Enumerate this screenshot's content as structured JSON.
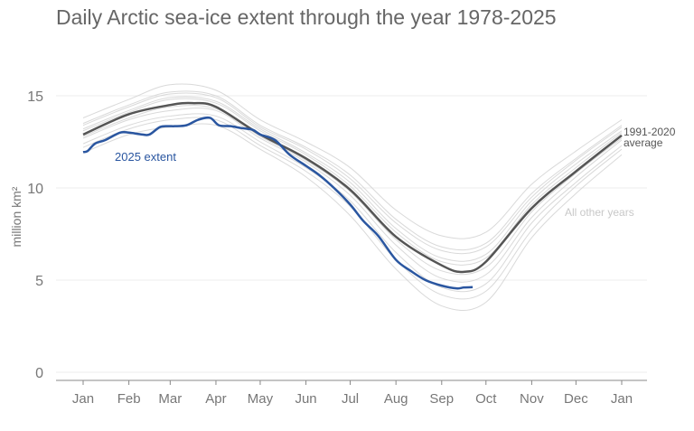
{
  "chart_data": {
    "type": "line",
    "title": "Daily Arctic sea-ice extent through the year 1978-2025",
    "ylabel": "million km²",
    "ylim": [
      0,
      17
    ],
    "yticks": [
      0,
      5,
      10,
      15
    ],
    "xticks": [
      {
        "label": "Jan",
        "day": 0
      },
      {
        "label": "Feb",
        "day": 31
      },
      {
        "label": "Mar",
        "day": 59
      },
      {
        "label": "Apr",
        "day": 90
      },
      {
        "label": "May",
        "day": 120
      },
      {
        "label": "Jun",
        "day": 151
      },
      {
        "label": "Jul",
        "day": 181
      },
      {
        "label": "Aug",
        "day": 212
      },
      {
        "label": "Sep",
        "day": 243
      },
      {
        "label": "Oct",
        "day": 273
      },
      {
        "label": "Nov",
        "day": 304
      },
      {
        "label": "Dec",
        "day": 334
      },
      {
        "label": "Jan",
        "day": 365
      }
    ],
    "grid": true,
    "other_years": {
      "label": "All other years",
      "color": "#cfcfcf",
      "days": [
        0,
        31,
        59,
        90,
        120,
        151,
        181,
        212,
        243,
        273,
        304,
        334,
        365
      ],
      "series": [
        [
          13.8,
          14.8,
          15.6,
          15.3,
          13.7,
          12.5,
          11.1,
          8.8,
          7.4,
          7.6,
          10.2,
          12.0,
          13.7
        ],
        [
          13.5,
          14.5,
          15.2,
          15.0,
          13.4,
          12.2,
          10.7,
          8.3,
          6.8,
          7.0,
          9.7,
          11.6,
          13.4
        ],
        [
          13.4,
          14.4,
          15.1,
          14.9,
          13.3,
          12.1,
          10.5,
          8.1,
          6.6,
          6.8,
          9.5,
          11.5,
          13.3
        ],
        [
          13.2,
          14.2,
          14.9,
          14.7,
          13.2,
          11.9,
          10.3,
          7.8,
          6.2,
          6.4,
          9.3,
          11.3,
          13.1
        ],
        [
          13.1,
          14.1,
          14.8,
          14.6,
          13.1,
          11.8,
          10.1,
          7.6,
          6.0,
          6.2,
          9.1,
          11.1,
          13.0
        ],
        [
          12.8,
          13.8,
          14.4,
          14.3,
          12.8,
          11.5,
          9.8,
          7.2,
          5.5,
          5.7,
          8.7,
          10.8,
          12.7
        ],
        [
          12.7,
          13.7,
          14.2,
          14.2,
          12.7,
          11.4,
          9.6,
          6.9,
          5.1,
          5.3,
          8.4,
          10.6,
          12.6
        ],
        [
          12.4,
          13.4,
          13.9,
          13.9,
          12.5,
          11.1,
          9.3,
          6.5,
          4.6,
          4.8,
          8.1,
          10.3,
          12.3
        ],
        [
          12.2,
          13.2,
          13.7,
          13.7,
          12.3,
          10.9,
          9.0,
          6.1,
          4.2,
          4.4,
          7.7,
          10.1,
          12.1
        ],
        [
          11.9,
          12.9,
          13.3,
          13.4,
          12.1,
          10.6,
          8.5,
          5.6,
          3.6,
          3.8,
          7.3,
          9.7,
          11.8
        ]
      ]
    },
    "average": {
      "label": "1991-2020 average",
      "color": "#555555",
      "days": [
        0,
        31,
        59,
        74,
        90,
        120,
        151,
        181,
        212,
        243,
        258,
        273,
        304,
        334,
        365
      ],
      "values": [
        12.9,
        14.0,
        14.5,
        14.6,
        14.4,
        12.9,
        11.6,
        9.9,
        7.35,
        5.8,
        5.45,
        6.0,
        8.9,
        10.9,
        12.85
      ]
    },
    "current": {
      "label": "2025 extent",
      "color": "#2a56a0",
      "days": [
        0,
        3,
        8,
        15,
        25,
        31,
        40,
        45,
        52,
        58,
        62,
        70,
        78,
        86,
        92,
        100,
        107,
        115,
        120,
        130,
        140,
        151,
        160,
        170,
        181,
        190,
        200,
        212,
        222,
        232,
        243,
        253,
        258,
        264
      ],
      "values": [
        11.95,
        12.0,
        12.4,
        12.6,
        13.0,
        13.0,
        12.9,
        12.9,
        13.3,
        13.35,
        13.35,
        13.4,
        13.7,
        13.8,
        13.4,
        13.35,
        13.25,
        13.15,
        12.9,
        12.6,
        11.8,
        11.2,
        10.7,
        10.0,
        9.1,
        8.2,
        7.4,
        6.1,
        5.5,
        5.0,
        4.7,
        4.55,
        4.6,
        4.62
      ]
    }
  }
}
